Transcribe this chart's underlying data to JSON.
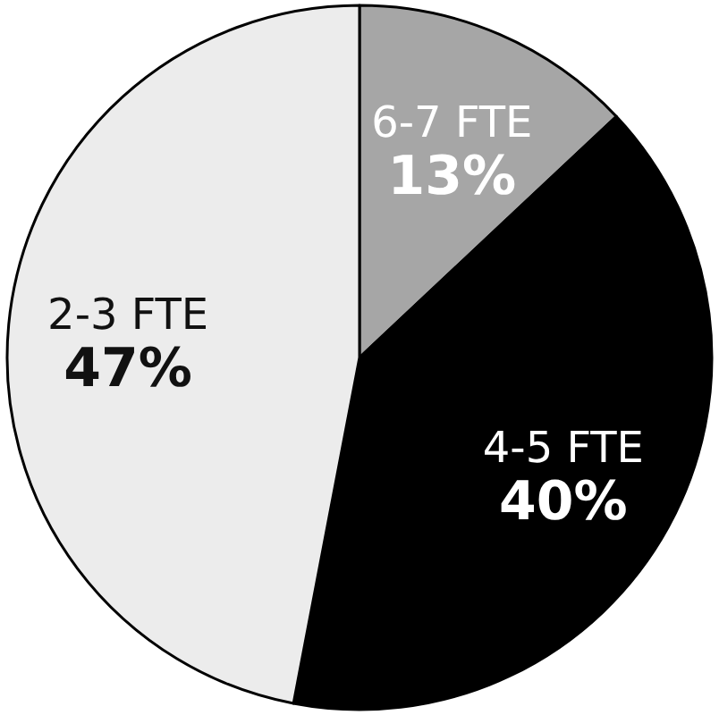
{
  "chart_data": {
    "type": "pie",
    "categories": [
      "6-7 FTE",
      "4-5 FTE",
      "2-3 FTE"
    ],
    "values": [
      13,
      40,
      47
    ],
    "colors": [
      "#a6a6a6",
      "#000000",
      "#ececec"
    ],
    "value_labels": [
      "13%",
      "40%",
      "47%"
    ]
  }
}
